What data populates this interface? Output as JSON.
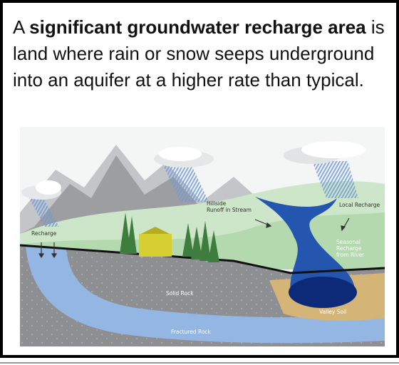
{
  "header": {
    "intro": "A",
    "bold": "significant groundwater recharge area",
    "rest": "is land where rain or snow seeps underground into an aquifer at a higher rate than typical."
  },
  "diagram": {
    "labels": [
      {
        "lines": [
          "Recharge"
        ]
      },
      {
        "lines": [
          "Hillside",
          "Runoff in Stream"
        ]
      },
      {
        "lines": [
          "Local Recharge"
        ]
      },
      {
        "lines": [
          "Seasonal",
          "Recharge",
          "from River"
        ]
      },
      {
        "lines": [
          "Solid Rock"
        ]
      },
      {
        "lines": [
          "Valley Soil"
        ]
      },
      {
        "lines": [
          "Fractured Rock"
        ]
      }
    ]
  }
}
